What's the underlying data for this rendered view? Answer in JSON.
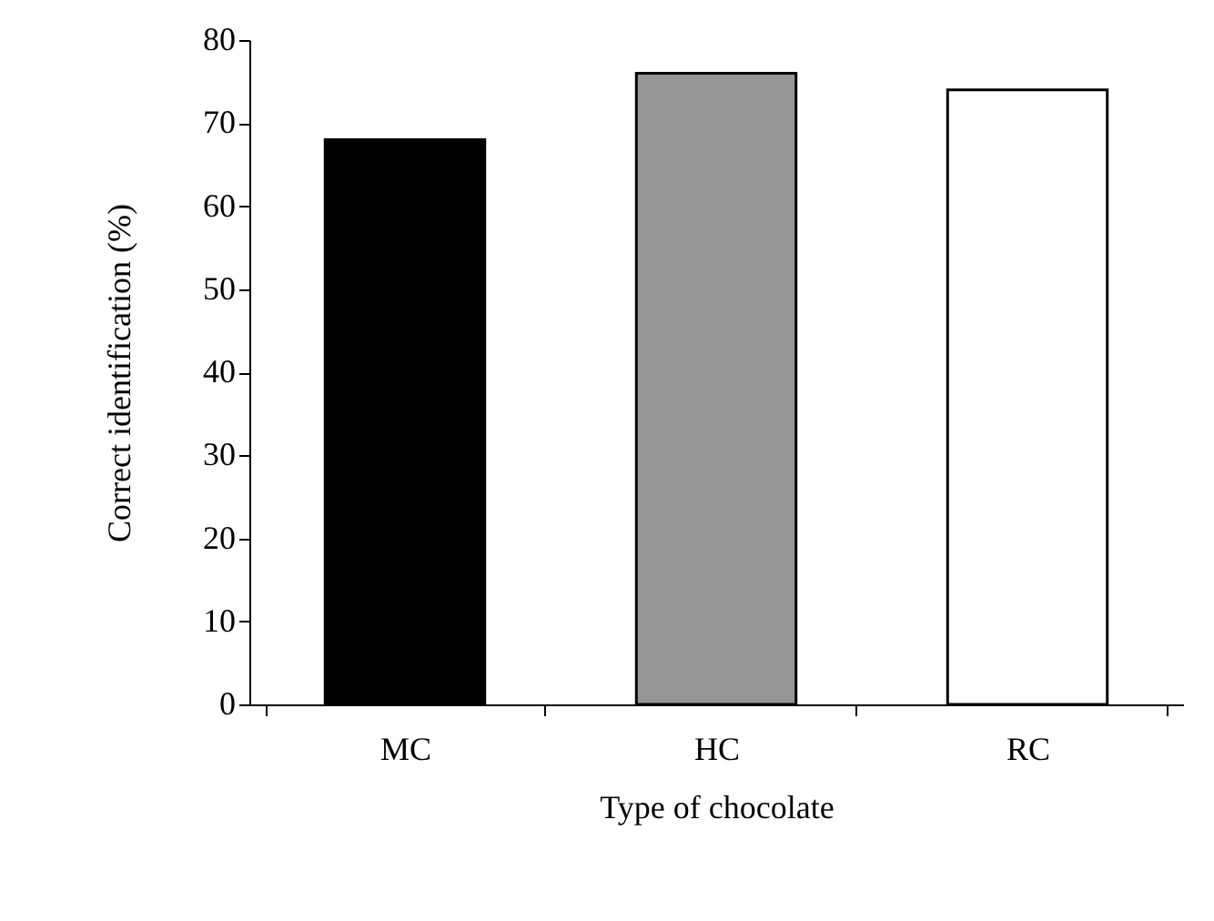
{
  "chart_data": {
    "type": "bar",
    "xlabel": "Type of chocolate",
    "ylabel": "Correct identification (%)",
    "categories": [
      "MC",
      "HC",
      "RC"
    ],
    "values": [
      68,
      76,
      74
    ],
    "colors": [
      "#000000",
      "#969696",
      "#ffffff"
    ],
    "ylim": [
      0,
      80
    ],
    "yticks": [
      0,
      10,
      20,
      30,
      40,
      50,
      60,
      70,
      80
    ],
    "grid": false
  }
}
